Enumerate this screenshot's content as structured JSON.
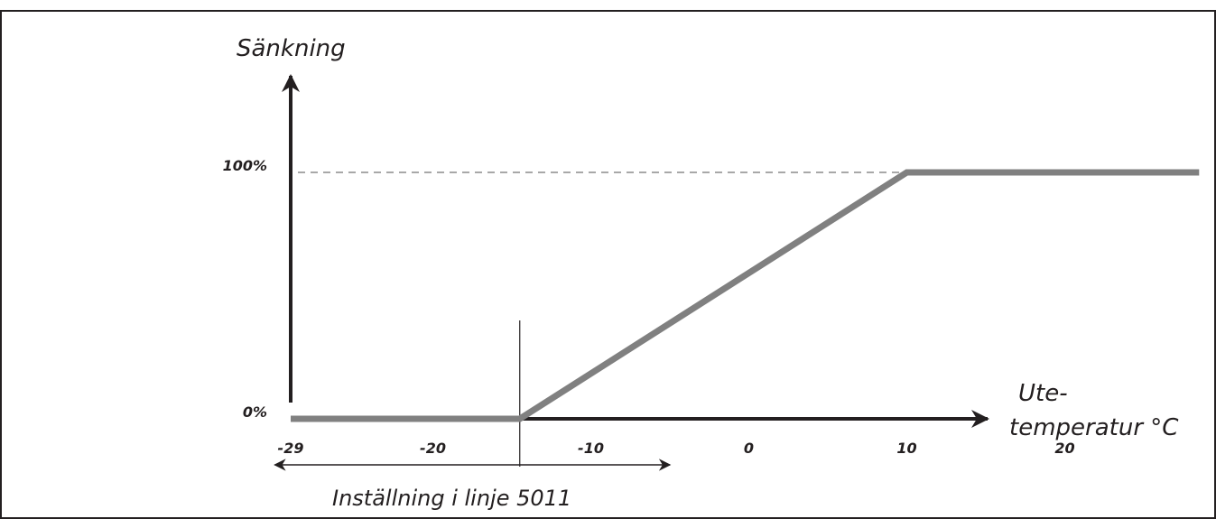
{
  "chart_data": {
    "type": "line",
    "ylabel": "Sänkning",
    "xlabel_line1": "Ute-",
    "xlabel_line2": "temperatur °C",
    "x_ticks": [
      -29,
      -20,
      -10,
      0,
      10,
      20
    ],
    "x_tick_labels": [
      "-29",
      "-20",
      "-10",
      "0",
      "10",
      "20"
    ],
    "y_ticks": [
      0,
      100
    ],
    "y_tick_labels": [
      "0%",
      "100%"
    ],
    "xlim": [
      -29,
      28
    ],
    "ylim": [
      0,
      100
    ],
    "reference_line": {
      "y": 100,
      "style": "dashed"
    },
    "series": [
      {
        "x": [
          -29,
          -14.5,
          10,
          28.5
        ],
        "y": [
          0,
          0,
          100,
          100
        ]
      }
    ],
    "setting_marker": {
      "x": -14.5
    },
    "range_arrow": {
      "from": -30,
      "to": -5
    },
    "annotation": "Inställning i linje 5011"
  },
  "colors": {
    "axis": "#231f20",
    "series": "#808080",
    "reference": "#8c8c8c",
    "border": "#231f20"
  }
}
